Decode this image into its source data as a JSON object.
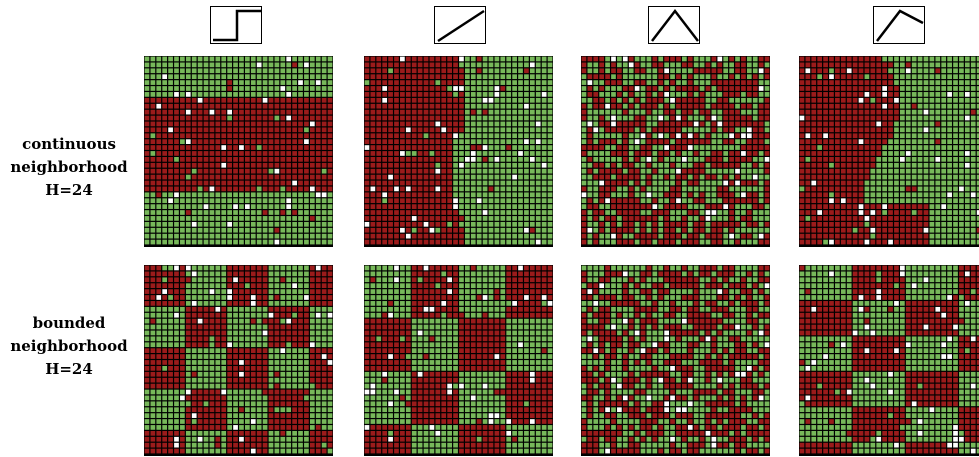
{
  "colors": {
    "red": "#9b1b1b",
    "green": "#77b85a",
    "empty": "#ffffff",
    "gap": "#000000"
  },
  "icons": [
    {
      "name": "step-function-icon"
    },
    {
      "name": "linear-function-icon"
    },
    {
      "name": "peaked-function-icon"
    },
    {
      "name": "asymmetric-peaked-function-icon"
    }
  ],
  "rows": [
    {
      "label_line1": "continuous",
      "label_line2": "neighborhood",
      "label_line3": "H=24"
    },
    {
      "label_line1": "bounded",
      "label_line2": "neighborhood",
      "label_line3": "H=24"
    }
  ],
  "grid_size": 32,
  "grids": [
    {
      "pattern": "horizontal-bands"
    },
    {
      "pattern": "vertical-split"
    },
    {
      "pattern": "fine-mix"
    },
    {
      "pattern": "left-region"
    },
    {
      "pattern": "patches"
    },
    {
      "pattern": "patches-b"
    },
    {
      "pattern": "fine-mix-b"
    },
    {
      "pattern": "patches-c"
    }
  ]
}
